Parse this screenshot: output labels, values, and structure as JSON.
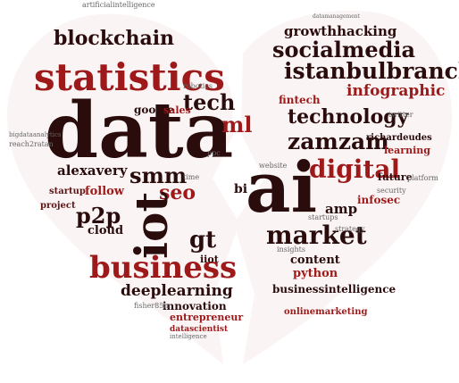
{
  "colors": {
    "dark": "#2a0c0c",
    "red": "#9e1a1a",
    "maroon": "#5c1616",
    "grey": "#666666",
    "background": "#ffffff"
  },
  "words": {
    "artificialintelligence": "artificialintelligence",
    "blockchain": "blockchain",
    "statistics": "statistics",
    "data": "data",
    "tech": "tech",
    "robotics": "robotics",
    "google": "google",
    "sales": "sales",
    "ml": "ml",
    "smm": "smm",
    "seo": "seo",
    "alexavery": "alexavery",
    "follow": "follow",
    "p2p": "p2p",
    "iot": "iot",
    "cloud": "cloud",
    "gt": "gt",
    "business": "business",
    "deeplearning": "deeplearning",
    "innovation": "innovation",
    "entrepreneur": "entrepreneur",
    "datascientist": "datascientist",
    "intelligence": "intelligence",
    "fisher85m": "fisher85m",
    "iiot": "iiot",
    "startup": "startup",
    "project": "project",
    "bigdataanalytics": "bigdataanalytics",
    "reach2ratan": "reach2ratan",
    "time": "time",
    "ppc": "ppc",
    "growthhacking": "growthhacking",
    "socialmedia": "socialmedia",
    "istanbulbranch": "istanbulbranch",
    "infographic": "infographic",
    "fintech": "fintech",
    "technology": "technology",
    "zamzam": "zamzam",
    "richardeudes": "richardeudes",
    "digital": "digital",
    "ai": "ai",
    "amp": "amp",
    "market": "market",
    "content": "content",
    "future": "future",
    "learning": "learning",
    "security": "security",
    "infosec": "infosec",
    "platform": "platform",
    "python": "python",
    "businessintelligence": "businessintelligence",
    "insights": "insights",
    "website": "website",
    "startups": "startups",
    "strategy": "strategy",
    "twitter": "twitter",
    "onlinemarketing": "onlinemarketing",
    "bi": "bi",
    "datamanagement": "datamanagement"
  }
}
